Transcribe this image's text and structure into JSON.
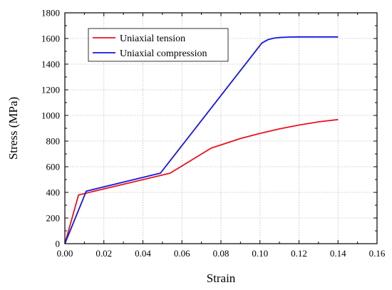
{
  "chart_data": {
    "type": "line",
    "title": "",
    "xlabel": "Strain",
    "ylabel": "Stress (MPa)",
    "xlim": [
      0.0,
      0.16
    ],
    "ylim": [
      0,
      1800
    ],
    "xticks": [
      0.0,
      0.02,
      0.04,
      0.06,
      0.08,
      0.1,
      0.12,
      0.14,
      0.16
    ],
    "xtick_labels": [
      "0.00",
      "0.02",
      "0.04",
      "0.06",
      "0.08",
      "0.10",
      "0.12",
      "0.14",
      "0.16"
    ],
    "yticks": [
      0,
      200,
      400,
      600,
      800,
      1000,
      1200,
      1400,
      1600,
      1800
    ],
    "ytick_labels": [
      "0",
      "200",
      "400",
      "600",
      "800",
      "1000",
      "1200",
      "1400",
      "1600",
      "1800"
    ],
    "grid": true,
    "legend_position": "top-left",
    "series": [
      {
        "name": "Uniaxial tension",
        "color": "#e8141c",
        "points": [
          [
            0.0,
            0
          ],
          [
            0.007,
            380
          ],
          [
            0.054,
            550
          ],
          [
            0.075,
            745
          ],
          [
            0.08,
            770
          ],
          [
            0.09,
            820
          ],
          [
            0.1,
            860
          ],
          [
            0.11,
            895
          ],
          [
            0.12,
            925
          ],
          [
            0.13,
            950
          ],
          [
            0.14,
            968
          ]
        ]
      },
      {
        "name": "Uniaxial compression",
        "color": "#1414e6",
        "points": [
          [
            0.0,
            0
          ],
          [
            0.011,
            410
          ],
          [
            0.049,
            550
          ],
          [
            0.101,
            1565
          ],
          [
            0.104,
            1590
          ],
          [
            0.107,
            1602
          ],
          [
            0.11,
            1608
          ],
          [
            0.115,
            1611
          ],
          [
            0.12,
            1612
          ],
          [
            0.14,
            1612
          ]
        ]
      }
    ]
  }
}
